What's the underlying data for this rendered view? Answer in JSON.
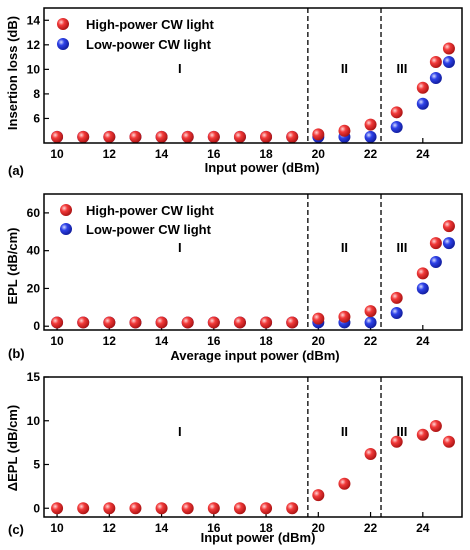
{
  "chart_data": [
    {
      "type": "scatter",
      "panel_label": "(a)",
      "xlabel": "Input power (dBm)",
      "ylabel": "Insertion loss (dB)",
      "xlim": [
        9.5,
        25.5
      ],
      "ylim": [
        4,
        15
      ],
      "xticks": [
        10,
        12,
        14,
        16,
        18,
        20,
        22,
        24
      ],
      "yticks": [
        6,
        8,
        10,
        12,
        14
      ],
      "legend": {
        "placement": "top-left"
      },
      "series": [
        {
          "name": "High-power CW light",
          "color": "#e8141c",
          "x": [
            10,
            11,
            12,
            13,
            14,
            15,
            16,
            17,
            18,
            19,
            20,
            21,
            22,
            23,
            24,
            24.5,
            25
          ],
          "y": [
            4.5,
            4.5,
            4.5,
            4.5,
            4.5,
            4.5,
            4.5,
            4.5,
            4.5,
            4.5,
            4.7,
            5.0,
            5.5,
            6.5,
            8.5,
            10.6,
            11.7
          ]
        },
        {
          "name": "Low-power CW light",
          "color": "#1c2bd6",
          "x": [
            10,
            11,
            12,
            13,
            14,
            15,
            16,
            17,
            18,
            19,
            20,
            21,
            22,
            23,
            24,
            24.5,
            25
          ],
          "y": [
            4.5,
            4.5,
            4.5,
            4.5,
            4.5,
            4.5,
            4.5,
            4.5,
            4.5,
            4.5,
            4.5,
            4.5,
            4.5,
            5.3,
            7.2,
            9.3,
            10.6
          ]
        }
      ],
      "regions": [
        {
          "label": "I",
          "x": 14.7
        },
        {
          "label": "II",
          "x": 21
        },
        {
          "label": "III",
          "x": 23.2
        }
      ],
      "dividers": [
        19.6,
        22.4
      ]
    },
    {
      "type": "scatter",
      "panel_label": "(b)",
      "xlabel": "Average input power (dBm)",
      "ylabel": "EPL (dB/cm)",
      "xlim": [
        9.5,
        25.5
      ],
      "ylim": [
        -2,
        70
      ],
      "xticks": [
        10,
        12,
        14,
        16,
        18,
        20,
        22,
        24
      ],
      "yticks": [
        0,
        20,
        40,
        60
      ],
      "legend": {
        "placement": "top-left"
      },
      "series": [
        {
          "name": "High-power CW light",
          "color": "#e8141c",
          "x": [
            10,
            11,
            12,
            13,
            14,
            15,
            16,
            17,
            18,
            19,
            20,
            21,
            22,
            23,
            24,
            24.5,
            25
          ],
          "y": [
            2,
            2,
            2,
            2,
            2,
            2,
            2,
            2,
            2,
            2,
            4,
            5,
            8,
            15,
            28,
            44,
            53
          ]
        },
        {
          "name": "Low-power CW light",
          "color": "#1c2bd6",
          "x": [
            10,
            11,
            12,
            13,
            14,
            15,
            16,
            17,
            18,
            19,
            20,
            21,
            22,
            23,
            24,
            24.5,
            25
          ],
          "y": [
            2,
            2,
            2,
            2,
            2,
            2,
            2,
            2,
            2,
            2,
            2,
            2,
            2,
            7,
            20,
            34,
            44
          ]
        }
      ],
      "regions": [
        {
          "label": "I",
          "x": 14.7
        },
        {
          "label": "II",
          "x": 21
        },
        {
          "label": "III",
          "x": 23.2
        }
      ],
      "dividers": [
        19.6,
        22.4
      ]
    },
    {
      "type": "scatter",
      "panel_label": "(c)",
      "xlabel": "Input power (dBm)",
      "ylabel": "ΔEPL (dB/cm)",
      "xlim": [
        9.5,
        25.5
      ],
      "ylim": [
        -1,
        15
      ],
      "xticks": [
        10,
        12,
        14,
        16,
        18,
        20,
        22,
        24
      ],
      "yticks": [
        0,
        5,
        10,
        15
      ],
      "series": [
        {
          "name": "",
          "color": "#e8141c",
          "x": [
            10,
            11,
            12,
            13,
            14,
            15,
            16,
            17,
            18,
            19,
            20,
            21,
            22,
            23,
            24,
            24.5,
            25
          ],
          "y": [
            0,
            0,
            0,
            0,
            0,
            0,
            0,
            0,
            0,
            0,
            1.5,
            2.8,
            6.2,
            7.6,
            8.4,
            9.4,
            7.6
          ]
        }
      ],
      "regions": [
        {
          "label": "I",
          "x": 14.7
        },
        {
          "label": "II",
          "x": 21
        },
        {
          "label": "III",
          "x": 23.2
        }
      ],
      "dividers": [
        19.6,
        22.4
      ]
    }
  ]
}
